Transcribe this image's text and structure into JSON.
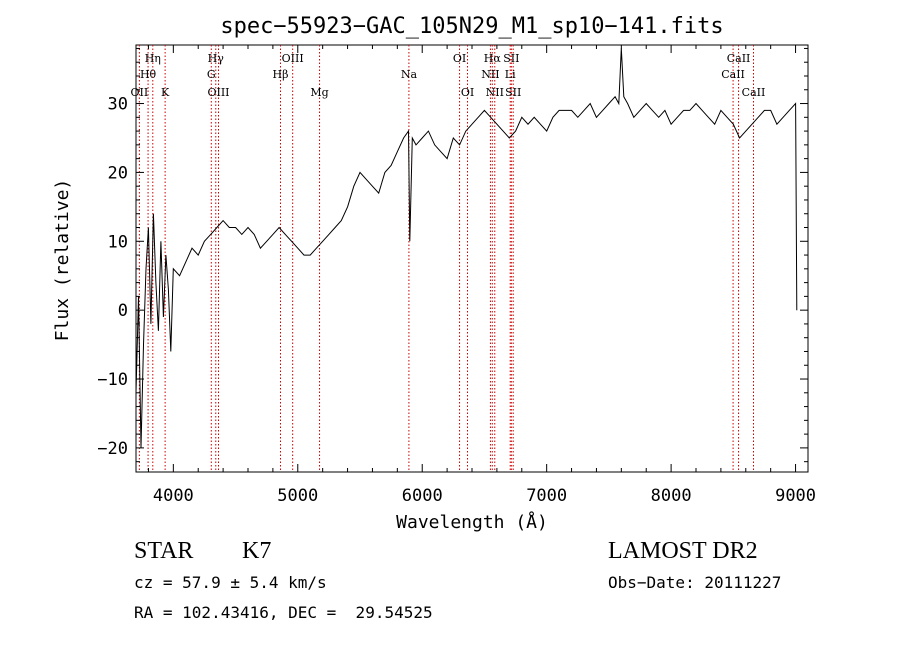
{
  "chart_data": {
    "type": "line",
    "title": "spec−55923−GAC_105N29_M1_sp10−141.fits",
    "xlabel": "Wavelength (Å)",
    "ylabel": "Flux (relative)",
    "xlim": [
      3700,
      9100
    ],
    "ylim": [
      -23.5,
      38.5
    ],
    "x_ticks": [
      4000,
      5000,
      6000,
      7000,
      8000,
      9000
    ],
    "y_ticks": [
      -20,
      -10,
      0,
      10,
      20,
      30
    ],
    "grid": false,
    "line_color": "#000000",
    "marker_color": "#cc0000",
    "series": [
      {
        "x": [
          3700,
          3720,
          3740,
          3760,
          3780,
          3800,
          3820,
          3840,
          3860,
          3880,
          3900,
          3920,
          3940,
          3960,
          3980,
          4000,
          4050,
          4100,
          4150,
          4200,
          4250,
          4300,
          4350,
          4400,
          4450,
          4500,
          4550,
          4600,
          4650,
          4700,
          4750,
          4800,
          4850,
          4900,
          4950,
          5000,
          5050,
          5100,
          5150,
          5200,
          5250,
          5300,
          5350,
          5400,
          5450,
          5500,
          5550,
          5600,
          5650,
          5700,
          5750,
          5800,
          5850,
          5890,
          5900,
          5920,
          5950,
          6000,
          6050,
          6100,
          6150,
          6200,
          6250,
          6300,
          6350,
          6400,
          6450,
          6500,
          6550,
          6600,
          6650,
          6700,
          6750,
          6800,
          6850,
          6900,
          6950,
          7000,
          7050,
          7100,
          7150,
          7200,
          7250,
          7300,
          7350,
          7400,
          7450,
          7500,
          7550,
          7580,
          7600,
          7620,
          7650,
          7700,
          7750,
          7800,
          7850,
          7900,
          7950,
          8000,
          8050,
          8100,
          8150,
          8200,
          8250,
          8300,
          8350,
          8400,
          8450,
          8500,
          8550,
          8600,
          8650,
          8700,
          8750,
          8800,
          8850,
          8900,
          8950,
          9000,
          9010
        ],
        "y": [
          -12,
          2,
          -20,
          -5,
          6,
          12,
          -2,
          14,
          4,
          -3,
          10,
          -1,
          8,
          3,
          -6,
          6,
          5,
          7,
          9,
          8,
          10,
          11,
          12,
          13,
          12,
          12,
          11,
          12,
          11,
          9,
          10,
          11,
          12,
          11,
          10,
          9,
          8,
          8,
          9,
          10,
          11,
          12,
          13,
          15,
          18,
          20,
          19,
          18,
          17,
          20,
          21,
          23,
          25,
          26,
          10,
          25,
          24,
          25,
          26,
          24,
          23,
          22,
          25,
          24,
          26,
          27,
          28,
          29,
          28,
          27,
          26,
          25,
          26,
          28,
          27,
          28,
          27,
          26,
          28,
          29,
          29,
          29,
          28,
          29,
          30,
          28,
          29,
          30,
          31,
          30,
          38,
          31,
          30,
          28,
          29,
          30,
          29,
          28,
          29,
          27,
          28,
          29,
          29,
          30,
          29,
          28,
          27,
          29,
          28,
          27,
          25,
          26,
          27,
          28,
          29,
          29,
          27,
          28,
          29,
          30,
          0
        ]
      }
    ],
    "line_markers": [
      {
        "wavelength": 3727,
        "label": "OII",
        "row": 3
      },
      {
        "wavelength": 3797,
        "label": "Hθ",
        "row": 2
      },
      {
        "wavelength": 3835,
        "label": "Hη",
        "row": 1
      },
      {
        "wavelength": 3934,
        "label": "K",
        "row": 3
      },
      {
        "wavelength": 4305,
        "label": "G",
        "row": 2
      },
      {
        "wavelength": 4341,
        "label": "Hγ",
        "row": 1
      },
      {
        "wavelength": 4363,
        "label": "OIII",
        "row": 3
      },
      {
        "wavelength": 4861,
        "label": "Hβ",
        "row": 2
      },
      {
        "wavelength": 4959,
        "label": "OIII",
        "row": 1
      },
      {
        "wavelength": 5175,
        "label": "Mg",
        "row": 3
      },
      {
        "wavelength": 5893,
        "label": "Na",
        "row": 2
      },
      {
        "wavelength": 6300,
        "label": "OI",
        "row": 1
      },
      {
        "wavelength": 6364,
        "label": "OI",
        "row": 3
      },
      {
        "wavelength": 6548,
        "label": "NII",
        "row": 2
      },
      {
        "wavelength": 6563,
        "label": "Hα",
        "row": 1
      },
      {
        "wavelength": 6583,
        "label": "NII",
        "row": 3
      },
      {
        "wavelength": 6707,
        "label": "Li",
        "row": 2
      },
      {
        "wavelength": 6716,
        "label": "SII",
        "row": 1
      },
      {
        "wavelength": 6731,
        "label": "SII",
        "row": 3
      },
      {
        "wavelength": 8498,
        "label": "CaII",
        "row": 2
      },
      {
        "wavelength": 8542,
        "label": "CaII",
        "row": 1
      },
      {
        "wavelength": 8662,
        "label": "CaII",
        "row": 3
      }
    ]
  },
  "info": {
    "object_class": "STAR",
    "subclass": "K7",
    "survey": "LAMOST DR2",
    "cz": "cz = 57.9 ± 5.4 km/s",
    "obs_date": "Obs−Date: 20111227",
    "coords": "RA = 102.43416, DEC =  29.54525"
  }
}
